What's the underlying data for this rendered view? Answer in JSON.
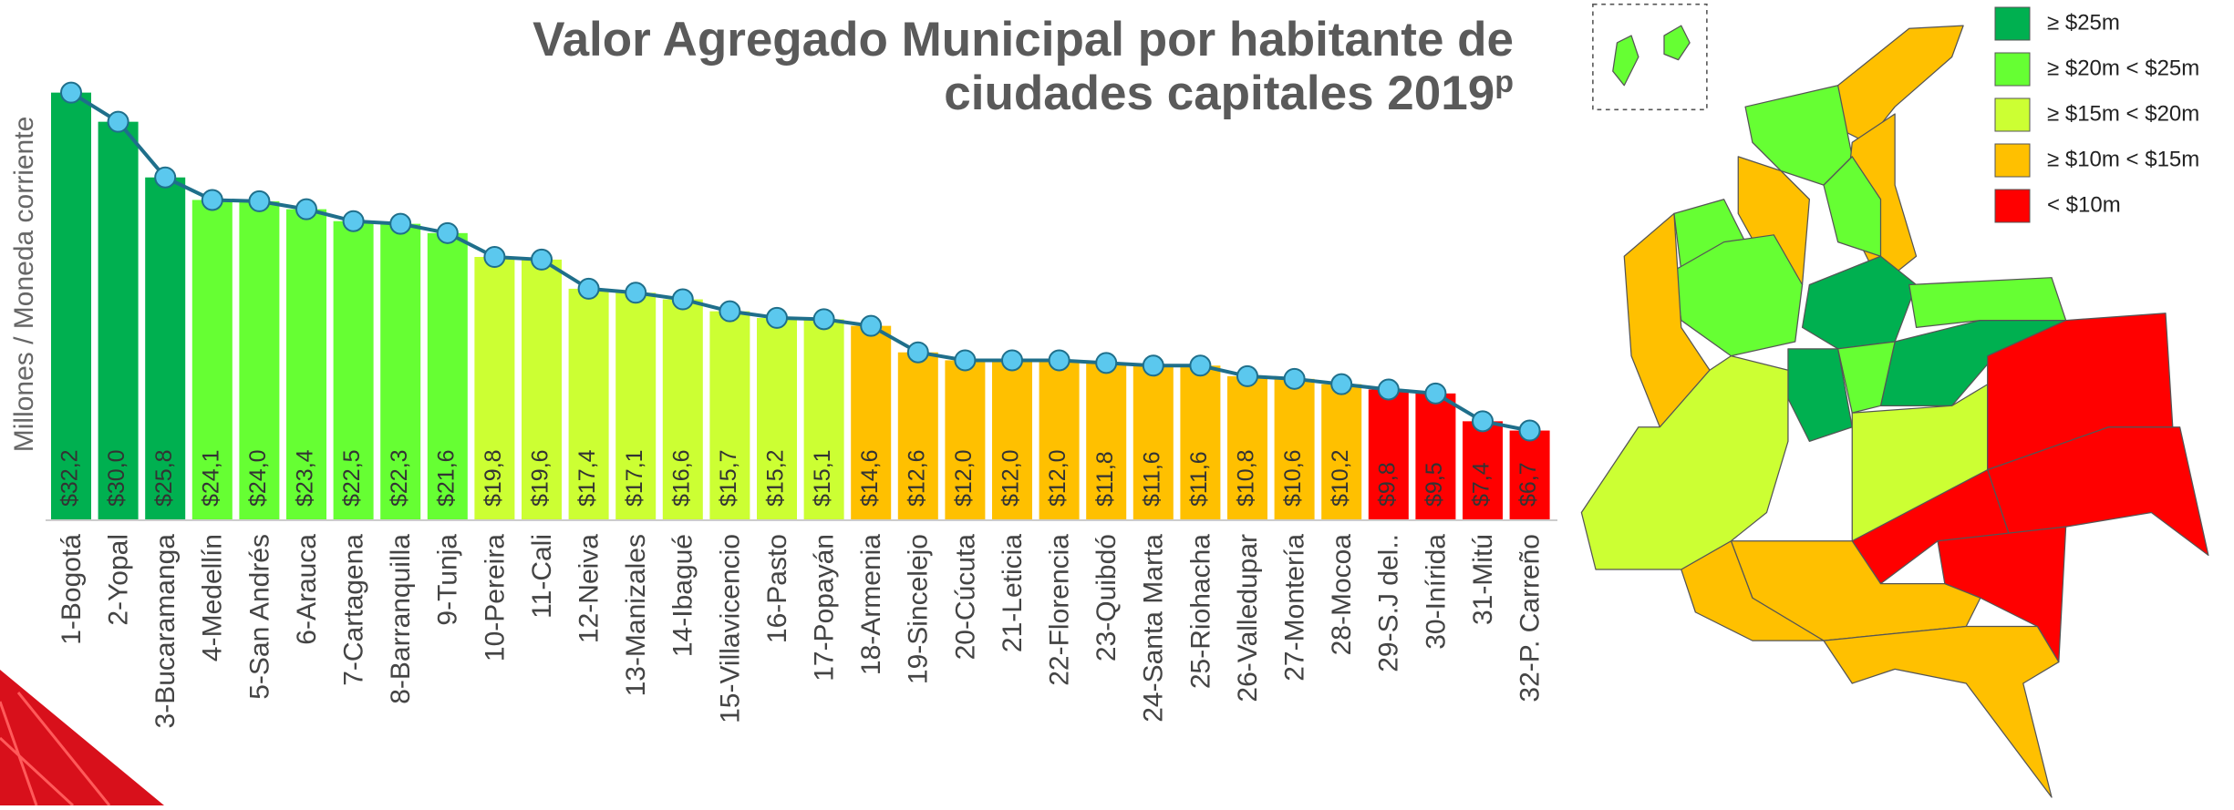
{
  "chart_data": {
    "type": "bar",
    "title": [
      "Valor Agregado Municipal por habitante de",
      "ciudades capitales 2019",
      "p"
    ],
    "y_label": "Millones / Moneda corriente",
    "categories": [
      "1-Bogotá",
      "2-Yopal",
      "3-Bucaramanga",
      "4-Medellín",
      "5-San Andrés",
      "6-Arauca",
      "7-Cartagena",
      "8-Barranquilla",
      "9-Tunja",
      "10-Pereira",
      "11-Cali",
      "12-Neiva",
      "13-Manizales",
      "14-Ibagué",
      "15-Villavicencio",
      "16-Pasto",
      "17-Popayán",
      "18-Armenia",
      "19-Sincelejo",
      "20-Cúcuta",
      "21-Leticia",
      "22-Florencia",
      "23-Quibdó",
      "24-Santa Marta",
      "25-Riohacha",
      "26-Valledupar",
      "27-Montería",
      "28-Mocoa",
      "29-S.J del..",
      "30-Inírida",
      "31-Mitú",
      "32-P. Carreño"
    ],
    "values": [
      32.2,
      30.0,
      25.8,
      24.1,
      24.0,
      23.4,
      22.5,
      22.3,
      21.6,
      19.8,
      19.6,
      17.4,
      17.1,
      16.6,
      15.7,
      15.2,
      15.1,
      14.6,
      12.6,
      12.0,
      12.0,
      12.0,
      11.8,
      11.6,
      11.6,
      10.8,
      10.6,
      10.2,
      9.8,
      9.5,
      7.4,
      6.7
    ],
    "value_labels": [
      "$32,2",
      "$30,0",
      "$25,8",
      "$24,1",
      "$24,0",
      "$23,4",
      "$22,5",
      "$22,3",
      "$21,6",
      "$19,8",
      "$19,6",
      "$17,4",
      "$17,1",
      "$16,6",
      "$15,7",
      "$15,2",
      "$15,1",
      "$14,6",
      "$12,6",
      "$12,0",
      "$12,0",
      "$12,0",
      "$11,8",
      "$11,6",
      "$11,6",
      "$10,8",
      "$10,6",
      "$10,2",
      "$9,8",
      "$9,5",
      "$7,4",
      "$6,7"
    ],
    "colors": [
      "#00b050",
      "#00b050",
      "#00b050",
      "#66ff33",
      "#66ff33",
      "#66ff33",
      "#66ff33",
      "#66ff33",
      "#66ff33",
      "#ccff33",
      "#ccff33",
      "#ccff33",
      "#ccff33",
      "#ccff33",
      "#ccff33",
      "#ccff33",
      "#ccff33",
      "#ffc000",
      "#ffc000",
      "#ffc000",
      "#ffc000",
      "#ffc000",
      "#ffc000",
      "#ffc000",
      "#ffc000",
      "#ffc000",
      "#ffc000",
      "#ffc000",
      "#ff0000",
      "#ff0000",
      "#ff0000",
      "#ff0000"
    ],
    "line_color": "#1f6f8b",
    "marker_color": "#5bc8ee",
    "ylim": [
      0,
      33
    ]
  },
  "map_legend": [
    {
      "label": "≥ $25m",
      "color": "#00b050"
    },
    {
      "label": "≥ $20m < $25m",
      "color": "#66ff33"
    },
    {
      "label": "≥ $15m < $20m",
      "color": "#ccff33"
    },
    {
      "label": "≥ $10m < $15m",
      "color": "#ffc000"
    },
    {
      "label": "< $10m",
      "color": "#ff0000"
    }
  ]
}
